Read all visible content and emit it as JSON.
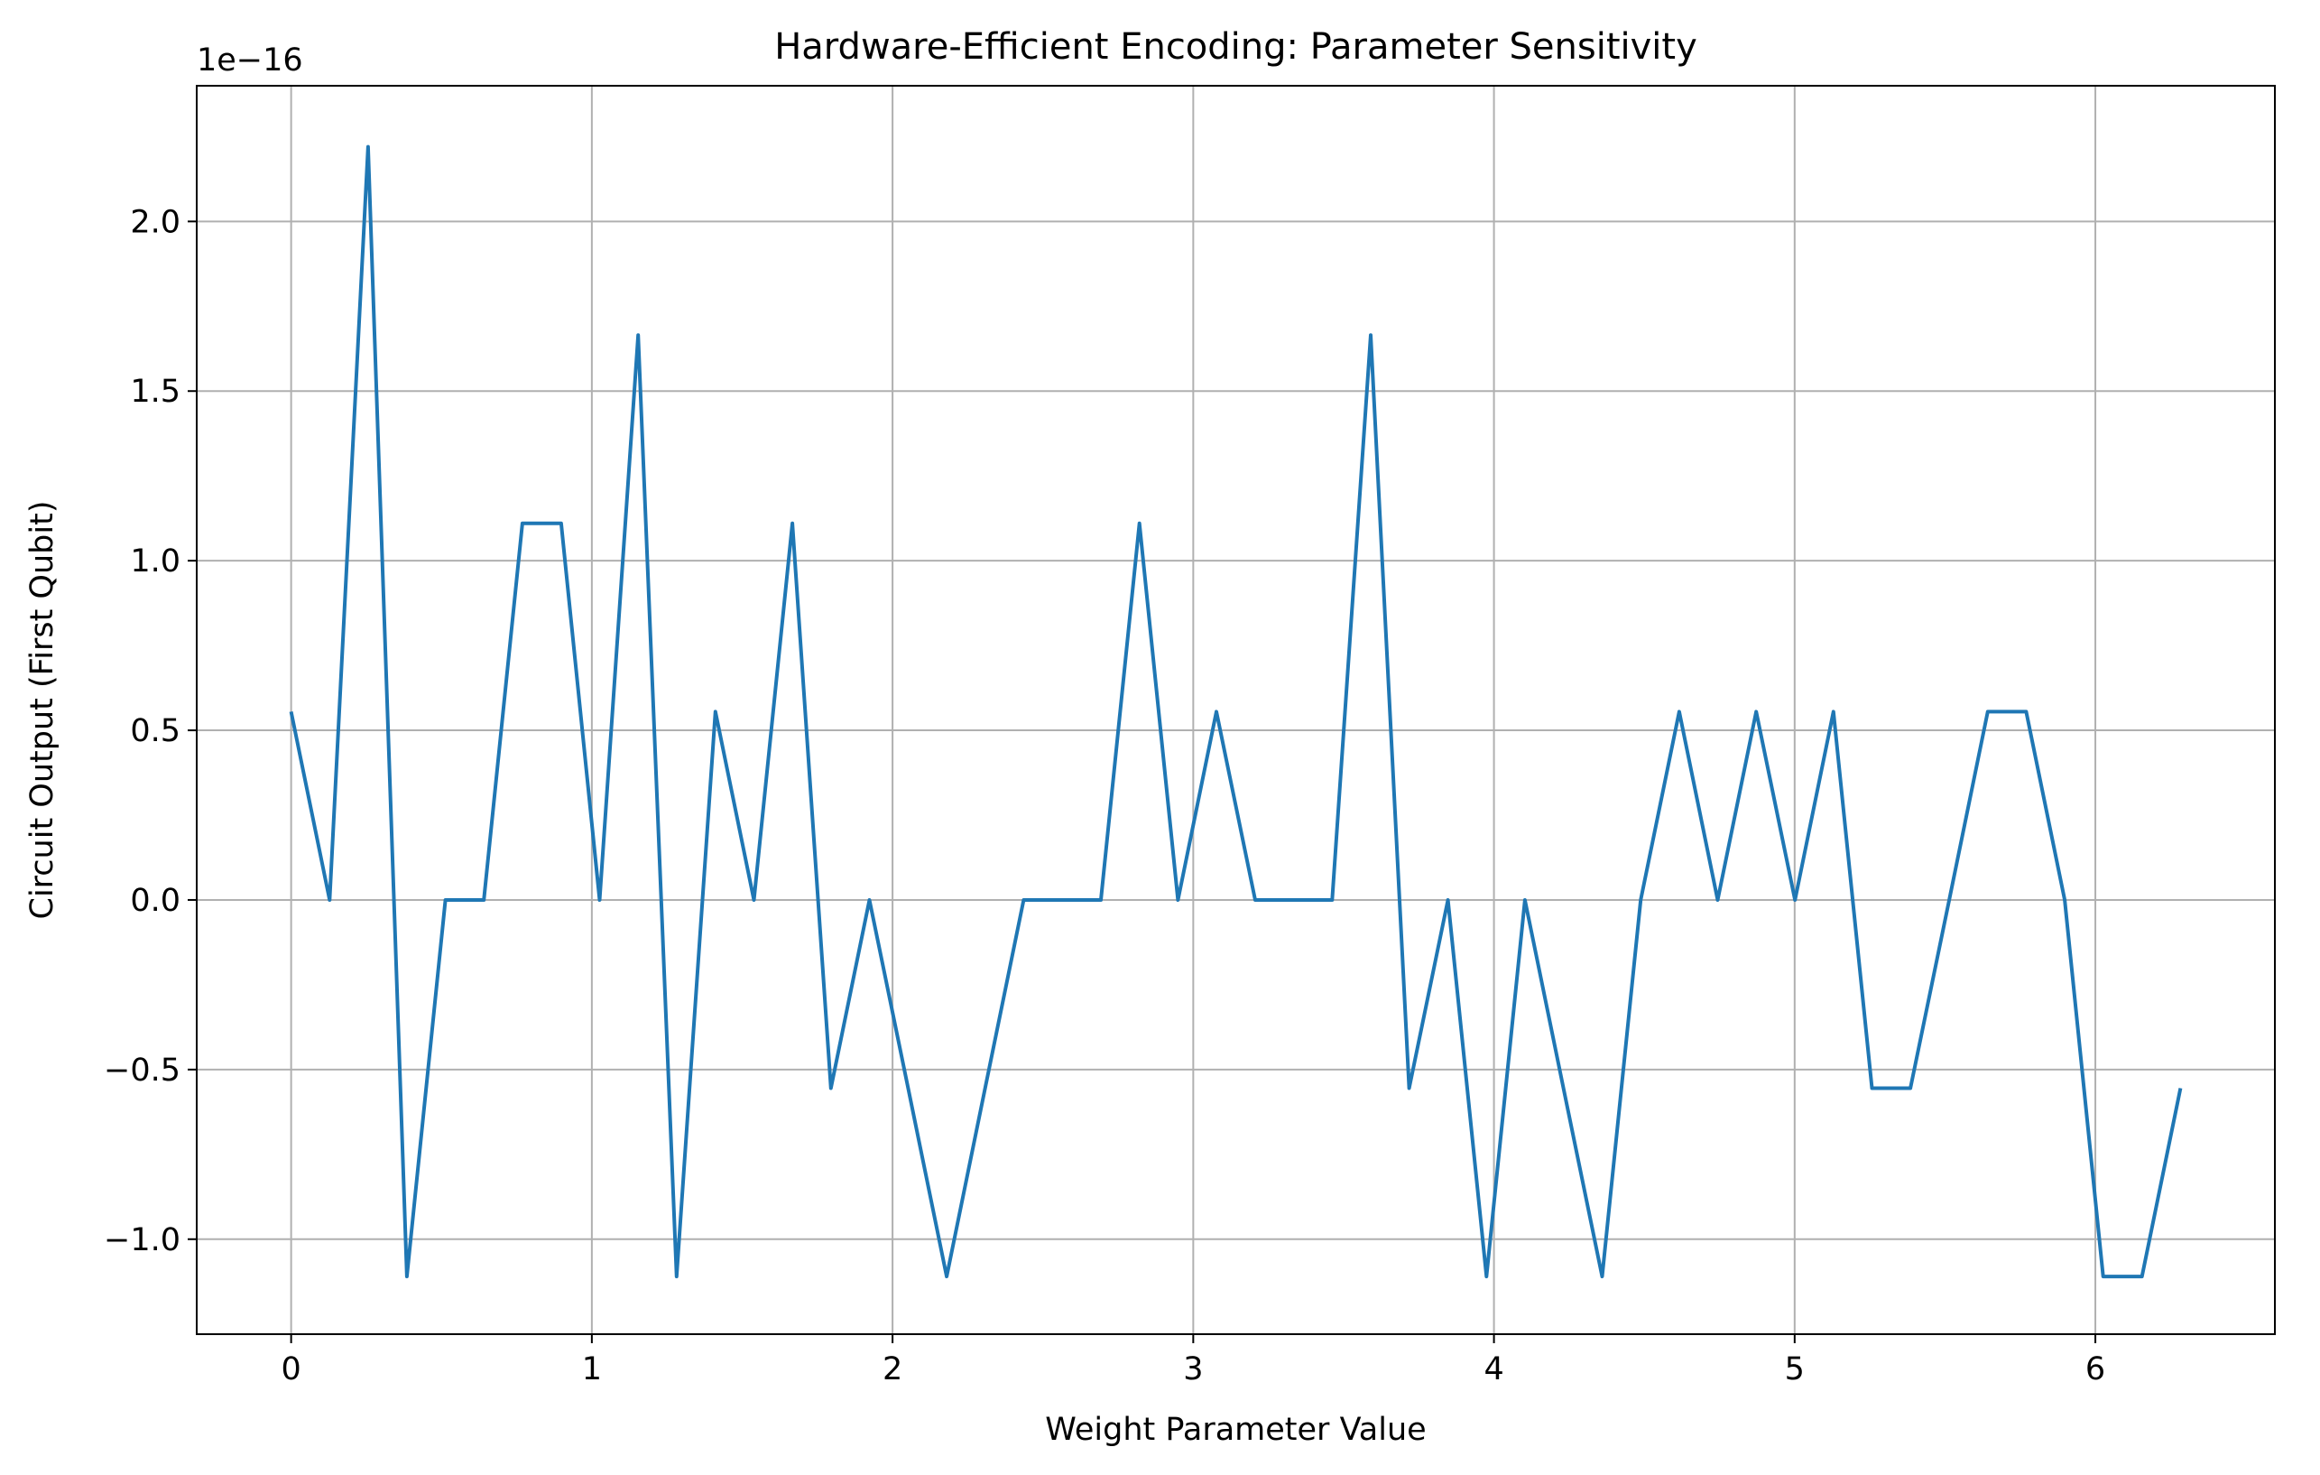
{
  "chart_data": {
    "type": "line",
    "title": "Hardware-Efficient Encoding: Parameter Sensitivity",
    "xlabel": "Weight Parameter Value",
    "ylabel": "Circuit Output (First Qubit)",
    "y_offset_label": "1e−16",
    "xlim": [
      -0.314,
      6.597
    ],
    "ylim": [
      -1.28,
      2.4
    ],
    "xticks": [
      0,
      1,
      2,
      3,
      4,
      5,
      6
    ],
    "xtick_labels": [
      "0",
      "1",
      "2",
      "3",
      "4",
      "5",
      "6"
    ],
    "yticks": [
      -1.0,
      -0.5,
      0.0,
      0.5,
      1.0,
      1.5,
      2.0
    ],
    "ytick_labels": [
      "−1.0",
      "−0.5",
      "0.0",
      "0.5",
      "1.0",
      "1.5",
      "2.0"
    ],
    "grid": true,
    "line_color": "#1f77b4",
    "grid_color": "#b0b0b0",
    "series": [
      {
        "x": [
          0.0,
          0.128,
          0.256,
          0.385,
          0.513,
          0.641,
          0.769,
          0.898,
          1.026,
          1.154,
          1.282,
          1.411,
          1.539,
          1.667,
          1.795,
          1.923,
          2.052,
          2.18,
          2.308,
          2.436,
          2.565,
          2.693,
          2.821,
          2.949,
          3.077,
          3.206,
          3.334,
          3.462,
          3.59,
          3.718,
          3.847,
          3.975,
          4.103,
          4.231,
          4.36,
          4.488,
          4.616,
          4.744,
          4.872,
          5.001,
          5.129,
          5.257,
          5.385,
          5.514,
          5.642,
          5.77,
          5.898,
          6.026,
          6.155,
          6.283
        ],
        "y": [
          0.555,
          0.0,
          2.22,
          -1.11,
          0.0,
          0.0,
          1.11,
          1.11,
          0.0,
          1.665,
          -1.11,
          0.555,
          0.0,
          1.11,
          -0.555,
          0.0,
          -0.555,
          -1.11,
          -0.555,
          0.0,
          0.0,
          0.0,
          1.11,
          0.0,
          0.555,
          0.0,
          0.0,
          0.0,
          1.665,
          -0.555,
          0.0,
          -1.11,
          0.0,
          -0.555,
          -1.11,
          0.0,
          0.555,
          0.0,
          0.555,
          0.0,
          0.555,
          -0.555,
          -0.555,
          0.0,
          0.555,
          0.555,
          0.0,
          -1.11,
          -1.11,
          -0.555
        ]
      }
    ]
  }
}
